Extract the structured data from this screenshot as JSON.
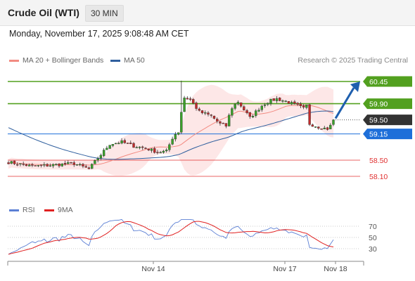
{
  "header": {
    "title": "Crude Oil (WTI)",
    "timeframe": "30 MIN"
  },
  "datetime": "Monday, November 17, 2025 9:08:48 AM CET",
  "legend": {
    "ma20": {
      "label": "MA 20 + Bollinger Bands",
      "color": "#f28b82"
    },
    "ma50": {
      "label": "MA 50",
      "color": "#2f5f9e"
    }
  },
  "research": "Research © 2025 Trading Central",
  "rsi_legend": {
    "rsi": {
      "label": "RSI",
      "color": "#5b7fd4"
    },
    "ma9": {
      "label": "9MA",
      "color": "#e02020"
    }
  },
  "chart_data": [
    {
      "type": "candlestick",
      "ylim": [
        57.4,
        61.0
      ],
      "current_price": 59.5,
      "levels": [
        {
          "value": 60.45,
          "label": "60.45",
          "style": "resistance",
          "color": "#52a01f"
        },
        {
          "value": 59.9,
          "label": "59.90",
          "style": "resistance",
          "color": "#52a01f"
        },
        {
          "value": 59.5,
          "label": "59.50",
          "style": "current",
          "color": "#333333"
        },
        {
          "value": 59.15,
          "label": "59.15",
          "style": "pivot",
          "color": "#1e6fd9"
        },
        {
          "value": 58.5,
          "label": "58.50",
          "style": "support",
          "color": "#e03030"
        },
        {
          "value": 58.1,
          "label": "58.10",
          "style": "support",
          "color": "#e03030"
        }
      ],
      "x_labels": [
        "Nov 14",
        "Nov 17",
        "Nov 18"
      ]
    },
    {
      "type": "line",
      "title": "RSI",
      "ylim": [
        10,
        90
      ],
      "yticks": [
        70,
        50,
        30
      ]
    }
  ]
}
